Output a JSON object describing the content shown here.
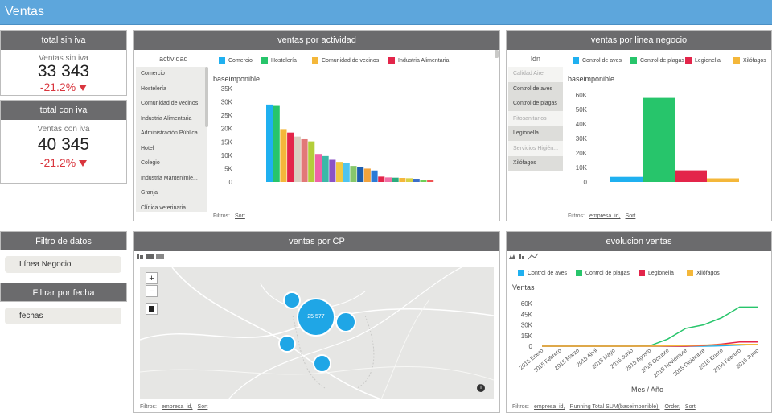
{
  "header": {
    "title": "Ventas"
  },
  "kpi_sin": {
    "title": "total sin iva",
    "label": "Ventas sin iva",
    "value": "33 343",
    "pct": "-21.2%"
  },
  "kpi_con": {
    "title": "total con iva",
    "label": "Ventas con iva",
    "value": "40 345",
    "pct": "-21.2%"
  },
  "actividad": {
    "title": "ventas por actividad",
    "list_header": "actividad",
    "items": [
      "Comercio",
      "Hostelería",
      "Comunidad de vecinos",
      "Industria Alimentaria",
      "Administración Pública",
      "Hotel",
      "Colegio",
      "Industria Mantenimie...",
      "Granja",
      "Clínica veterinaria"
    ],
    "legend": [
      {
        "name": "Comercio",
        "color": "#1fb0f0"
      },
      {
        "name": "Hostelería",
        "color": "#27c56b"
      },
      {
        "name": "Comunidad de vecinos",
        "color": "#f4b73a"
      },
      {
        "name": "Industria Alimentaria",
        "color": "#e3254a"
      }
    ],
    "filters_label": "Filtros:",
    "filters": [
      "Sort"
    ]
  },
  "linea": {
    "title": "ventas por linea negocio",
    "list_header": "ldn",
    "items": [
      {
        "label": "Calidad Aire",
        "state": "dim"
      },
      {
        "label": "Control de aves",
        "state": "sel"
      },
      {
        "label": "Control de plagas",
        "state": "sel"
      },
      {
        "label": "Fitosanitarios",
        "state": "dim"
      },
      {
        "label": "Legionella",
        "state": "sel"
      },
      {
        "label": "Servicios Higién...",
        "state": "dim"
      },
      {
        "label": "Xilófagos",
        "state": "sel"
      }
    ],
    "legend": [
      {
        "name": "Control de aves",
        "color": "#1fb0f0"
      },
      {
        "name": "Control de plagas",
        "color": "#27c56b"
      },
      {
        "name": "Legionella",
        "color": "#e3254a"
      },
      {
        "name": "Xilófagos",
        "color": "#f4b73a"
      }
    ],
    "filters_label": "Filtros:",
    "filters": [
      "empresa_id,",
      "Sort"
    ]
  },
  "filtro": {
    "title": "Filtro de datos",
    "button": "Línea Negocio",
    "fecha_title": "Filtrar por fecha",
    "fecha_button": "fechas"
  },
  "cp": {
    "title": "ventas por CP",
    "zoom_in": "+",
    "zoom_out": "−",
    "big_label": "25 577",
    "filters_label": "Filtros:",
    "filters": [
      "empresa_id,",
      "Sort"
    ]
  },
  "evol": {
    "title": "evolucion ventas",
    "filters_label": "Filtros:",
    "filters": [
      "empresa_id,",
      "Running Total SUM(baseimponible),",
      "Order,",
      "Sort"
    ]
  },
  "chart_data": [
    {
      "type": "bar",
      "title": "ventas por actividad",
      "ylabel": "baseimponible",
      "ylim": [
        0,
        35000
      ],
      "yticks": [
        "35K",
        "30K",
        "25K",
        "20K",
        "15K",
        "10K",
        "5K",
        "0"
      ],
      "values": [
        29000,
        28500,
        19800,
        18500,
        17000,
        16000,
        15200,
        10500,
        9700,
        8300,
        7500,
        7000,
        6000,
        5500,
        5000,
        4300,
        2000,
        1700,
        1600,
        1500,
        1400,
        1200,
        800,
        600
      ],
      "colors": [
        "#1fb0f0",
        "#27c56b",
        "#f4b73a",
        "#e3254a",
        "#d9cfc0",
        "#e27878",
        "#b3ce3a",
        "#ef62a7",
        "#3cb8a8",
        "#8a52c6",
        "#f0c843",
        "#4ec4ef",
        "#86c76a",
        "#1d5fb0",
        "#f2a33d",
        "#2b7bd6",
        "#e3254a",
        "#f06fa6",
        "#2aab7e",
        "#f4b73a",
        "#d6d143",
        "#3b6fc8",
        "#6dcf57",
        "#f05252"
      ]
    },
    {
      "type": "bar",
      "title": "ventas por linea negocio",
      "ylabel": "baseimponible",
      "ylim": [
        0,
        67000
      ],
      "yticks": [
        "60K",
        "50K",
        "40K",
        "30K",
        "20K",
        "10K",
        "0"
      ],
      "categories": [
        "Control de aves",
        "Control de plagas",
        "Legionella",
        "Xilófagos"
      ],
      "values": [
        3500,
        58000,
        8000,
        2500
      ]
    },
    {
      "type": "line",
      "title": "evolucion ventas",
      "ylabel": "Ventas",
      "xlabel": "Mes / Año",
      "ylim": [
        0,
        64000
      ],
      "yticks": [
        "60K",
        "45K",
        "30K",
        "15K",
        "0"
      ],
      "categories": [
        "2015 Enero",
        "2015 Febrero",
        "2015 Marzo",
        "2015 Abril",
        "2015 Mayo",
        "2015 Junio",
        "2015 Agosto",
        "2015 Octubre",
        "2015 Noviembre",
        "2015 Diciembre",
        "2016 Enero",
        "2016 Febrero",
        "2016 Junio"
      ],
      "series": [
        {
          "name": "Control de aves",
          "color": "#1fb0f0",
          "values": [
            0,
            0,
            0,
            0,
            0,
            0,
            0,
            0,
            0,
            0,
            500,
            1500,
            2500
          ]
        },
        {
          "name": "Control de plagas",
          "color": "#27c56b",
          "values": [
            0,
            0,
            0,
            0,
            0,
            0,
            500,
            10000,
            25000,
            30000,
            40000,
            55000,
            55000
          ]
        },
        {
          "name": "Legionella",
          "color": "#e3254a",
          "values": [
            0,
            0,
            0,
            0,
            0,
            0,
            0,
            0,
            0,
            1000,
            3000,
            6000,
            6000
          ]
        },
        {
          "name": "Xilófagos",
          "color": "#f4b73a",
          "values": [
            0,
            0,
            0,
            0,
            0,
            0,
            0,
            500,
            1000,
            1500,
            2000,
            2500,
            2500
          ]
        }
      ]
    }
  ]
}
